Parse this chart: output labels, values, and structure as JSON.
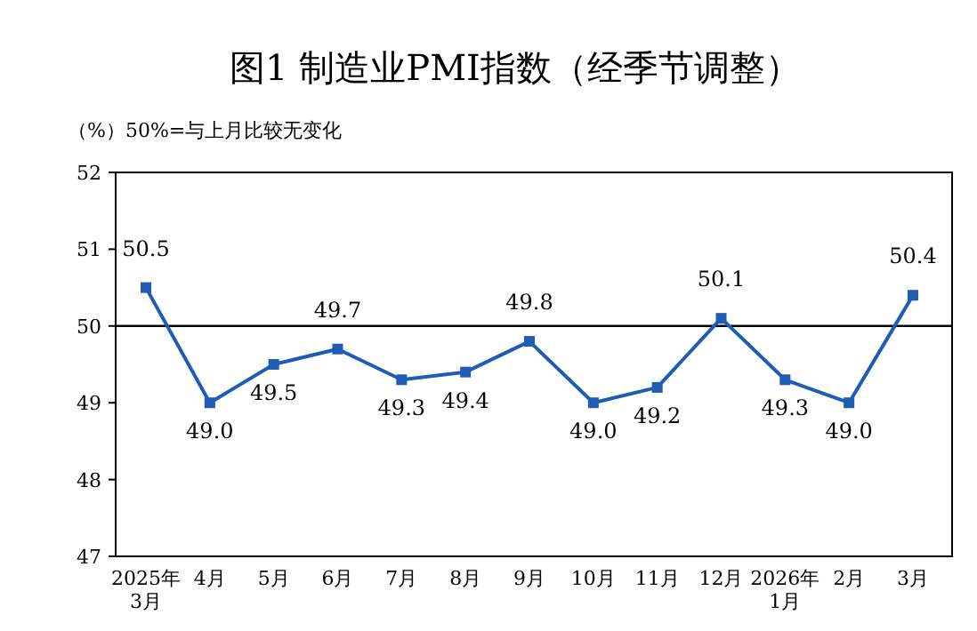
{
  "chart_data": {
    "type": "line",
    "title": "图1  制造业PMI指数（经季节调整）",
    "ylabel": "（%）50%=与上月比较无变化",
    "categories": [
      "2025年\n3月",
      "4月",
      "5月",
      "6月",
      "7月",
      "8月",
      "9月",
      "10月",
      "11月",
      "12月",
      "2026年\n1月",
      "2月",
      "3月"
    ],
    "series": [
      {
        "color": "#1f5cb4",
        "values": [
          50.5,
          49.0,
          49.5,
          49.7,
          49.3,
          49.4,
          49.8,
          49.0,
          49.2,
          50.1,
          49.3,
          49.0,
          50.4
        ],
        "value_labels": [
          "50.5",
          "49.0",
          "49.5",
          "49.7",
          "49.3",
          "49.4",
          "49.8",
          "49.0",
          "49.2",
          "50.1",
          "49.3",
          "49.0",
          "50.4"
        ]
      }
    ],
    "ylim": [
      47,
      52
    ],
    "yticks": [
      47,
      48,
      49,
      50,
      51,
      52
    ],
    "ref_lines": [
      {
        "axis": "y",
        "value": 50,
        "color": "#000000"
      }
    ],
    "marker": "square",
    "grid": false
  }
}
